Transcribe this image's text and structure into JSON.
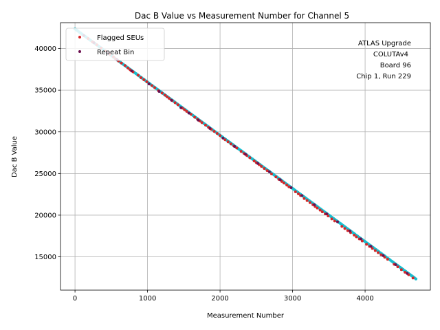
{
  "chart_data": {
    "type": "scatter",
    "title": "Dac B Value vs Measurement Number for Channel 5",
    "xlabel": "Measurement Number",
    "ylabel": "Dac B Value",
    "xlim": [
      -200,
      4900
    ],
    "ylim": [
      11000,
      43100
    ],
    "xticks": [
      0,
      1000,
      2000,
      3000,
      4000
    ],
    "yticks": [
      15000,
      20000,
      25000,
      30000,
      35000,
      40000
    ],
    "grid": true,
    "annotation": [
      "ATLAS Upgrade",
      "COLUTAv4",
      "Board 96",
      "Chip 1, Run 229"
    ],
    "legend": {
      "placement": "upper-left",
      "entries": [
        {
          "label": "Flagged SEUs",
          "color": "#d62728"
        },
        {
          "label": "Repeat Bin",
          "color": "#6b0f4f"
        }
      ]
    },
    "series": [
      {
        "name": "Measurements",
        "color": "#17becf",
        "x_start": 0,
        "x_end": 4700,
        "y_start": 42350,
        "y_end": 12350
      },
      {
        "name": "Flagged SEUs",
        "color": "#d62728",
        "x": [
          180,
          240,
          300,
          360,
          420,
          480,
          530,
          560,
          600,
          640,
          690,
          730,
          760,
          800,
          870,
          910,
          950,
          990,
          1060,
          1100,
          1150,
          1200,
          1240,
          1270,
          1300,
          1340,
          1380,
          1420,
          1480,
          1510,
          1540,
          1600,
          1650,
          1690,
          1720,
          1750,
          1800,
          1840,
          1880,
          1920,
          1960,
          2000,
          2070,
          2110,
          2150,
          2190,
          2230,
          2290,
          2330,
          2370,
          2410,
          2470,
          2500,
          2540,
          2570,
          2610,
          2650,
          2710,
          2770,
          2810,
          2850,
          2880,
          2920,
          2950,
          3040,
          3080,
          3110,
          3160,
          3200,
          3240,
          3280,
          3310,
          3340,
          3380,
          3410,
          3450,
          3490,
          3540,
          3580,
          3680,
          3720,
          3760,
          3800,
          3850,
          3880,
          3920,
          3960,
          4020,
          4060,
          4100,
          4140,
          4180,
          4220,
          4270,
          4310,
          4400,
          4450,
          4500,
          4550,
          4600,
          4660
        ],
        "y": [
          41200,
          40800,
          40450,
          40050,
          39700,
          39300,
          39000,
          38750,
          38500,
          38250,
          37950,
          37650,
          37450,
          37200,
          36800,
          36500,
          36250,
          36000,
          35550,
          35300,
          34950,
          34650,
          34400,
          34200,
          34000,
          33750,
          33500,
          33250,
          32850,
          32650,
          32450,
          32100,
          31750,
          31500,
          31300,
          31100,
          30800,
          30550,
          30300,
          30050,
          29800,
          29550,
          29050,
          28800,
          28550,
          28300,
          28050,
          27650,
          27400,
          27150,
          26900,
          26500,
          26300,
          26050,
          25850,
          25600,
          25350,
          24950,
          24600,
          24300,
          24050,
          23850,
          23600,
          23400,
          22800,
          22550,
          22350,
          22000,
          21750,
          21500,
          21250,
          21050,
          20850,
          20600,
          20400,
          20150,
          19900,
          19550,
          19300,
          18650,
          18400,
          18150,
          17900,
          17600,
          17400,
          17150,
          16900,
          16500,
          16250,
          16000,
          15750,
          15500,
          15250,
          14950,
          14700,
          14100,
          13800,
          13450,
          13150,
          12850,
          12450
        ]
      },
      {
        "name": "Repeat Bin",
        "color": "#6b0f4f",
        "x": [
          120,
          260,
          450,
          580,
          780,
          1020,
          1160,
          1330,
          1460,
          1570,
          1700,
          1860,
          2040,
          2200,
          2350,
          2520,
          2680,
          2830,
          2980,
          3130,
          3300,
          3470,
          3620,
          3790,
          3940,
          4080,
          4250,
          4420,
          4580
        ],
        "y": [
          41550,
          40700,
          39500,
          38650,
          37300,
          35750,
          34850,
          33800,
          32900,
          32250,
          31400,
          30400,
          29250,
          28250,
          27300,
          26200,
          25200,
          24250,
          23300,
          22350,
          21250,
          20150,
          19200,
          18100,
          17150,
          16250,
          15150,
          14050,
          13000
        ]
      }
    ]
  }
}
